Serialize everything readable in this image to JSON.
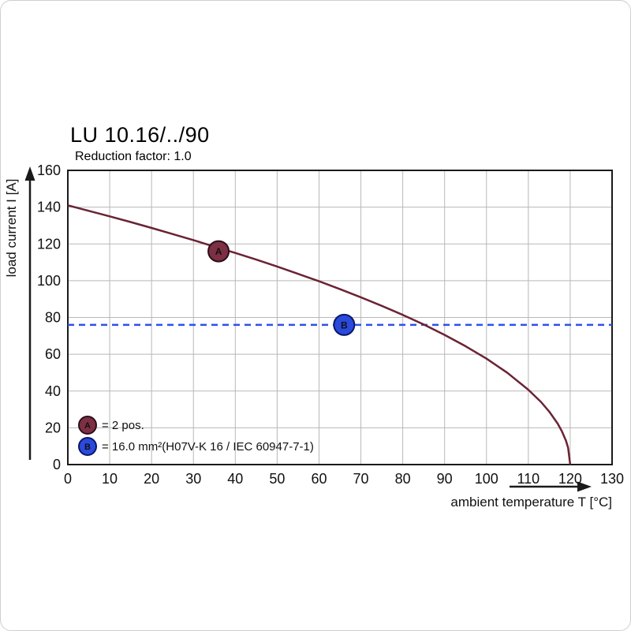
{
  "header": {
    "title": "LU 10.16/../90",
    "subtitle": "Reduction factor: 1.0"
  },
  "chart_data": {
    "type": "line",
    "title": "LU 10.16/../90",
    "subtitle": "Reduction factor: 1.0",
    "xlabel": "ambient temperature T [°C]",
    "ylabel": "load current I [A]",
    "xlim": [
      0,
      130
    ],
    "ylim": [
      0,
      160
    ],
    "x_ticks": [
      0,
      10,
      20,
      30,
      40,
      50,
      60,
      70,
      80,
      90,
      100,
      110,
      120,
      130
    ],
    "y_ticks": [
      0,
      20,
      40,
      60,
      80,
      100,
      120,
      140,
      160
    ],
    "grid": true,
    "legend_position": "lower-left",
    "colors": {
      "grid": "#b8b8b8",
      "axis": "#1a1a1a",
      "curve": "#6b2334",
      "reference": "#2b50ec",
      "marker_a_fill": "#7d2f44",
      "marker_a_stroke": "#2c0e1b",
      "marker_b_fill": "#2a49dd",
      "marker_b_stroke": "#0a1866"
    },
    "series": [
      {
        "name": "derating curve",
        "color": "#6b2334",
        "points": [
          [
            0,
            141
          ],
          [
            5,
            138
          ],
          [
            10,
            135
          ],
          [
            15,
            131.9
          ],
          [
            20,
            128.7
          ],
          [
            25,
            125.4
          ],
          [
            30,
            122.1
          ],
          [
            35,
            118.5
          ],
          [
            40,
            115.1
          ],
          [
            45,
            111.5
          ],
          [
            50,
            107.7
          ],
          [
            55,
            103.7
          ],
          [
            60,
            99.7
          ],
          [
            65,
            95.4
          ],
          [
            70,
            91
          ],
          [
            75,
            86.3
          ],
          [
            80,
            81.4
          ],
          [
            85,
            76.2
          ],
          [
            90,
            70.5
          ],
          [
            95,
            64.4
          ],
          [
            100,
            57.6
          ],
          [
            105,
            49.9
          ],
          [
            110,
            40.7
          ],
          [
            113,
            34.1
          ],
          [
            115,
            28.8
          ],
          [
            117,
            22.3
          ],
          [
            118,
            18.2
          ],
          [
            119,
            12.9
          ],
          [
            119.5,
            9.1
          ],
          [
            120,
            0
          ]
        ]
      }
    ],
    "reference_line": {
      "y": 76,
      "color": "#2b50ec",
      "style": "dashed"
    },
    "markers": [
      {
        "label": "A",
        "x": 36,
        "y": 116
      },
      {
        "label": "B",
        "x": 66,
        "y": 76
      }
    ],
    "legend": [
      {
        "label": "A",
        "text": "= 2 pos."
      },
      {
        "label": "B",
        "text": "= 16.0 mm²(H07V-K 16 / IEC 60947-7-1)"
      }
    ]
  }
}
